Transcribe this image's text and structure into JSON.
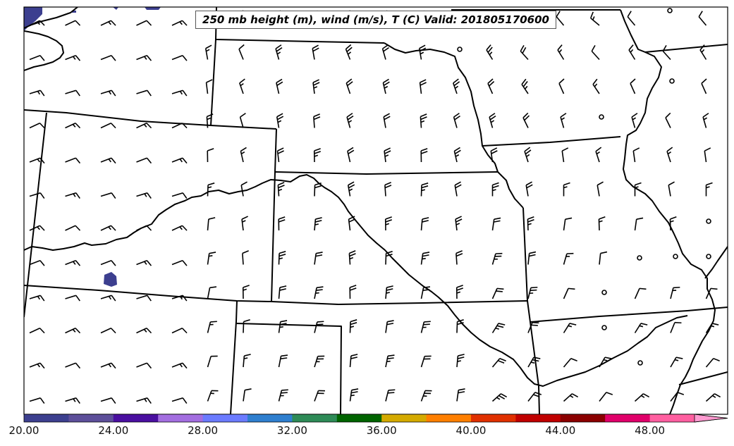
{
  "title": "250 mb height (m), wind (m/s), T (C) Valid: 201805170600",
  "colorbar": {
    "labels": [
      "20.00",
      "24.00",
      "28.00",
      "32.00",
      "36.00",
      "40.00",
      "44.00",
      "48.00"
    ],
    "values": [
      20,
      24,
      28,
      32,
      36,
      40,
      44,
      48
    ],
    "min": 20,
    "max": 51.5,
    "extend": "max",
    "colors": [
      "#3c3f8f",
      "#5d4f9a",
      "#4a0fa0",
      "#a36ee0",
      "#6b7bff",
      "#2f7fcf",
      "#2e8b57",
      "#006400",
      "#d4aa00",
      "#ff7f00",
      "#e03000",
      "#c00000",
      "#8b0000",
      "#e0006a",
      "#ff5fa0",
      "#ff9ad0"
    ]
  },
  "map": {
    "region": "Central United States",
    "temperature_patches_color": "#3c3f8f",
    "barb_color": "#000000",
    "boundary_color": "#000000"
  }
}
